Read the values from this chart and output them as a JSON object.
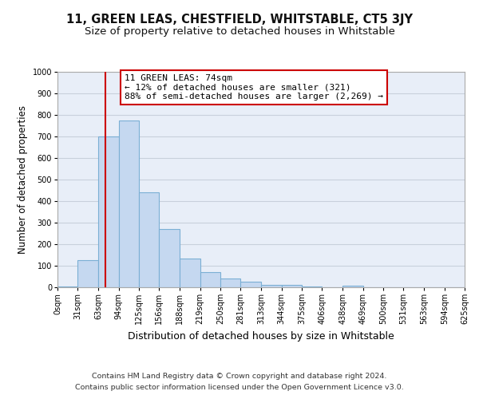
{
  "title": "11, GREEN LEAS, CHESTFIELD, WHITSTABLE, CT5 3JY",
  "subtitle": "Size of property relative to detached houses in Whitstable",
  "xlabel": "Distribution of detached houses by size in Whitstable",
  "ylabel": "Number of detached properties",
  "bar_values": [
    5,
    125,
    700,
    775,
    440,
    270,
    135,
    70,
    40,
    25,
    12,
    10,
    5,
    0,
    8,
    0,
    0,
    0,
    0,
    0
  ],
  "bin_edges": [
    0,
    31,
    63,
    94,
    125,
    156,
    188,
    219,
    250,
    281,
    313,
    344,
    375,
    406,
    438,
    469,
    500,
    531,
    563,
    594,
    625
  ],
  "tick_labels": [
    "0sqm",
    "31sqm",
    "63sqm",
    "94sqm",
    "125sqm",
    "156sqm",
    "188sqm",
    "219sqm",
    "250sqm",
    "281sqm",
    "313sqm",
    "344sqm",
    "375sqm",
    "406sqm",
    "438sqm",
    "469sqm",
    "500sqm",
    "531sqm",
    "563sqm",
    "594sqm",
    "625sqm"
  ],
  "bar_color": "#c5d8f0",
  "bar_edge_color": "#7bafd4",
  "bar_edge_width": 0.8,
  "vline_x": 74,
  "vline_color": "#cc0000",
  "ylim": [
    0,
    1000
  ],
  "yticks": [
    0,
    100,
    200,
    300,
    400,
    500,
    600,
    700,
    800,
    900,
    1000
  ],
  "annotation_title": "11 GREEN LEAS: 74sqm",
  "annotation_line1": "← 12% of detached houses are smaller (321)",
  "annotation_line2": "88% of semi-detached houses are larger (2,269) →",
  "annotation_box_facecolor": "#ffffff",
  "annotation_box_edgecolor": "#cc0000",
  "footnote1": "Contains HM Land Registry data © Crown copyright and database right 2024.",
  "footnote2": "Contains public sector information licensed under the Open Government Licence v3.0.",
  "background_color": "#ffffff",
  "plot_bg_color": "#e8eef8",
  "grid_color": "#c8d0dc",
  "title_fontsize": 10.5,
  "subtitle_fontsize": 9.5,
  "xlabel_fontsize": 9,
  "ylabel_fontsize": 8.5,
  "tick_fontsize": 7,
  "annot_fontsize": 8,
  "footnote_fontsize": 6.8
}
